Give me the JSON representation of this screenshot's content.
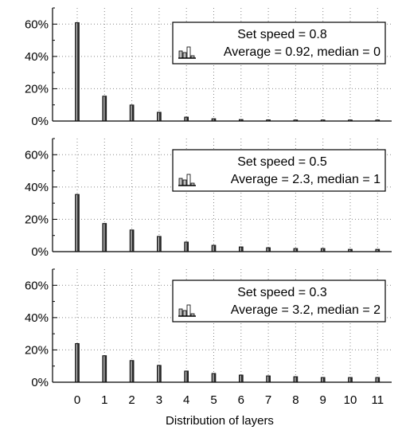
{
  "colors": {
    "bar_fill": "#2b2b2b",
    "bar_highlight": "#bdbdbd",
    "axis": "#000000",
    "grid": "#888888",
    "background": "#ffffff"
  },
  "legend_icon": "bar-chart-icon",
  "xlabel": "Distribution of layers",
  "chart_data": [
    {
      "type": "bar",
      "categories": [
        "0",
        "1",
        "2",
        "3",
        "4",
        "5",
        "6",
        "7",
        "8",
        "9",
        "10",
        "11"
      ],
      "values": [
        61,
        15.5,
        10,
        5.5,
        2.5,
        1.5,
        1,
        0.8,
        0.5,
        0.4,
        0.3,
        0.3
      ],
      "legend": [
        "Set speed = 0.8",
        "Average = 0.92, median = 0"
      ],
      "ylim": [
        0,
        70
      ],
      "yticks": [
        0,
        20,
        40,
        60
      ],
      "ytick_labels": [
        "0%",
        "20%",
        "40%",
        "60%"
      ],
      "grid": true,
      "legend_position": "top-right"
    },
    {
      "type": "bar",
      "categories": [
        "0",
        "1",
        "2",
        "3",
        "4",
        "5",
        "6",
        "7",
        "8",
        "9",
        "10",
        "11"
      ],
      "values": [
        35.5,
        17.5,
        13.5,
        9.5,
        6,
        4,
        3,
        2.5,
        2,
        2,
        1.5,
        1.5
      ],
      "legend": [
        "Set speed = 0.5",
        "Average = 2.3, median = 1"
      ],
      "ylim": [
        0,
        70
      ],
      "yticks": [
        0,
        20,
        40,
        60
      ],
      "ytick_labels": [
        "0%",
        "20%",
        "40%",
        "60%"
      ],
      "grid": true,
      "legend_position": "top-right"
    },
    {
      "type": "bar",
      "categories": [
        "0",
        "1",
        "2",
        "3",
        "4",
        "5",
        "6",
        "7",
        "8",
        "9",
        "10",
        "11"
      ],
      "values": [
        24,
        16.5,
        13.5,
        10.5,
        7,
        5.5,
        4.5,
        4,
        3.5,
        3,
        3,
        3
      ],
      "legend": [
        "Set speed = 0.3",
        "Average = 3.2, median = 2"
      ],
      "ylim": [
        0,
        70
      ],
      "yticks": [
        0,
        20,
        40,
        60
      ],
      "ytick_labels": [
        "0%",
        "20%",
        "40%",
        "60%"
      ],
      "grid": true,
      "legend_position": "top-right"
    }
  ]
}
